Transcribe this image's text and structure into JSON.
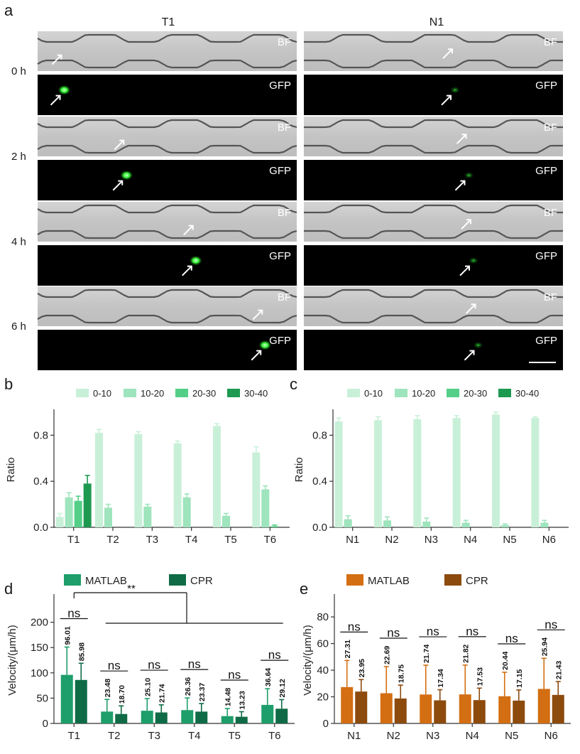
{
  "panel_letters": {
    "a": "a",
    "b": "b",
    "c": "c",
    "d": "d",
    "e": "e"
  },
  "panel_a": {
    "columns": [
      "T1",
      "N1"
    ],
    "times": [
      "0 h",
      "2 h",
      "4 h",
      "6 h"
    ],
    "channel_labels": {
      "bf": "BF",
      "gfp": "GFP"
    },
    "cell_positions_t1": [
      0.06,
      0.33,
      0.63,
      0.93
    ],
    "cell_positions_n1": [
      0.6,
      0.66,
      0.68,
      0.7
    ],
    "colors": {
      "gfp_spot": "#3cff3c",
      "bf_bg": "#c9c9c9",
      "gfp_bg": "#000000"
    }
  },
  "chart_data": [
    {
      "type": "bar",
      "panel": "b",
      "ylabel": "Ratio",
      "ylim": [
        0,
        1.0
      ],
      "yticks": [
        "0.0",
        "0.4",
        "0.8"
      ],
      "categories": [
        "T1",
        "T2",
        "T3",
        "T4",
        "T5",
        "T6"
      ],
      "legend_position": "top",
      "series": [
        {
          "name": "0-10",
          "color": "#c8f0d8",
          "values": [
            0.09,
            0.82,
            0.81,
            0.73,
            0.88,
            0.65
          ],
          "errors": [
            0.03,
            0.03,
            0.02,
            0.02,
            0.02,
            0.05
          ]
        },
        {
          "name": "10-20",
          "color": "#9ee4bd",
          "values": [
            0.26,
            0.17,
            0.18,
            0.26,
            0.1,
            0.33
          ],
          "errors": [
            0.04,
            0.03,
            0.02,
            0.03,
            0.02,
            0.03
          ]
        },
        {
          "name": "20-30",
          "color": "#54cf88",
          "values": [
            0.23,
            0,
            0,
            0,
            0,
            0.01
          ],
          "errors": [
            0.04,
            0,
            0,
            0,
            0,
            0.01
          ]
        },
        {
          "name": "30-40",
          "color": "#1e9950",
          "values": [
            0.38,
            0,
            0,
            0,
            0,
            0
          ],
          "errors": [
            0.07,
            0,
            0,
            0,
            0,
            0
          ]
        }
      ]
    },
    {
      "type": "bar",
      "panel": "c",
      "ylabel": "Ratio",
      "ylim": [
        0,
        1.0
      ],
      "yticks": [
        "0.0",
        "0.4",
        "0.8"
      ],
      "categories": [
        "N1",
        "N2",
        "N3",
        "N4",
        "N5",
        "N6"
      ],
      "legend_position": "top",
      "series": [
        {
          "name": "0-10",
          "color": "#c8f0d8",
          "values": [
            0.92,
            0.93,
            0.94,
            0.95,
            0.98,
            0.95
          ],
          "errors": [
            0.03,
            0.03,
            0.03,
            0.02,
            0.02,
            0.01
          ]
        },
        {
          "name": "10-20",
          "color": "#9ee4bd",
          "values": [
            0.07,
            0.06,
            0.05,
            0.04,
            0.02,
            0.04
          ],
          "errors": [
            0.03,
            0.03,
            0.03,
            0.02,
            0.01,
            0.02
          ]
        },
        {
          "name": "20-30",
          "color": "#54cf88",
          "values": [
            0,
            0,
            0,
            0,
            0,
            0
          ],
          "errors": [
            0,
            0,
            0,
            0,
            0,
            0
          ]
        },
        {
          "name": "30-40",
          "color": "#1e9950",
          "values": [
            0,
            0,
            0,
            0,
            0,
            0
          ],
          "errors": [
            0,
            0,
            0,
            0,
            0,
            0
          ]
        }
      ]
    },
    {
      "type": "bar",
      "panel": "d",
      "ylabel": "Velocity/(μm/h)",
      "ylim": [
        0,
        250
      ],
      "yticks": [
        "0",
        "50",
        "100",
        "150",
        "200"
      ],
      "categories": [
        "T1",
        "T2",
        "T3",
        "T4",
        "T5",
        "T6"
      ],
      "legend_position": "top",
      "series": [
        {
          "name": "MATLAB",
          "color": "#1e9e6a",
          "values": [
            96.01,
            23.48,
            25.1,
            26.36,
            14.48,
            36.64
          ],
          "errors": [
            55,
            24,
            24,
            24,
            15,
            32
          ],
          "labels": [
            "96.01",
            "23.48",
            "25.10",
            "26.36",
            "14.48",
            "36.64"
          ]
        },
        {
          "name": "CPR",
          "color": "#0f6b46",
          "values": [
            85.98,
            18.7,
            21.74,
            23.37,
            13.23,
            29.12
          ],
          "errors": [
            33,
            16,
            15,
            16,
            10,
            18
          ],
          "labels": [
            "85.98",
            "18.70",
            "21.74",
            "23.37",
            "13.23",
            "29.12"
          ]
        }
      ],
      "significance": {
        "pair_label": "ns",
        "overall_label": "**"
      }
    },
    {
      "type": "bar",
      "panel": "e",
      "ylabel": "Velocity/(μm/h)",
      "ylim": [
        0,
        95
      ],
      "yticks": [
        "0",
        "20",
        "40",
        "60",
        "80"
      ],
      "categories": [
        "N1",
        "N2",
        "N3",
        "N4",
        "N5",
        "N6"
      ],
      "legend_position": "top",
      "series": [
        {
          "name": "MATLAB",
          "color": "#d36e12",
          "values": [
            27.31,
            22.69,
            21.74,
            21.82,
            20.44,
            25.94
          ],
          "errors": [
            20,
            20,
            22,
            22,
            18,
            23
          ],
          "labels": [
            "27.31",
            "22.69",
            "21.74",
            "21.82",
            "20.44",
            "25.94"
          ]
        },
        {
          "name": "CPR",
          "color": "#8c4a0d",
          "values": [
            23.95,
            18.75,
            17.34,
            17.53,
            17.15,
            21.43
          ],
          "errors": [
            9,
            10,
            8,
            9,
            8,
            10
          ],
          "labels": [
            "23.95",
            "18.75",
            "17.34",
            "17.53",
            "17.15",
            "21.43"
          ]
        }
      ],
      "significance": {
        "pair_label": "ns"
      }
    }
  ]
}
